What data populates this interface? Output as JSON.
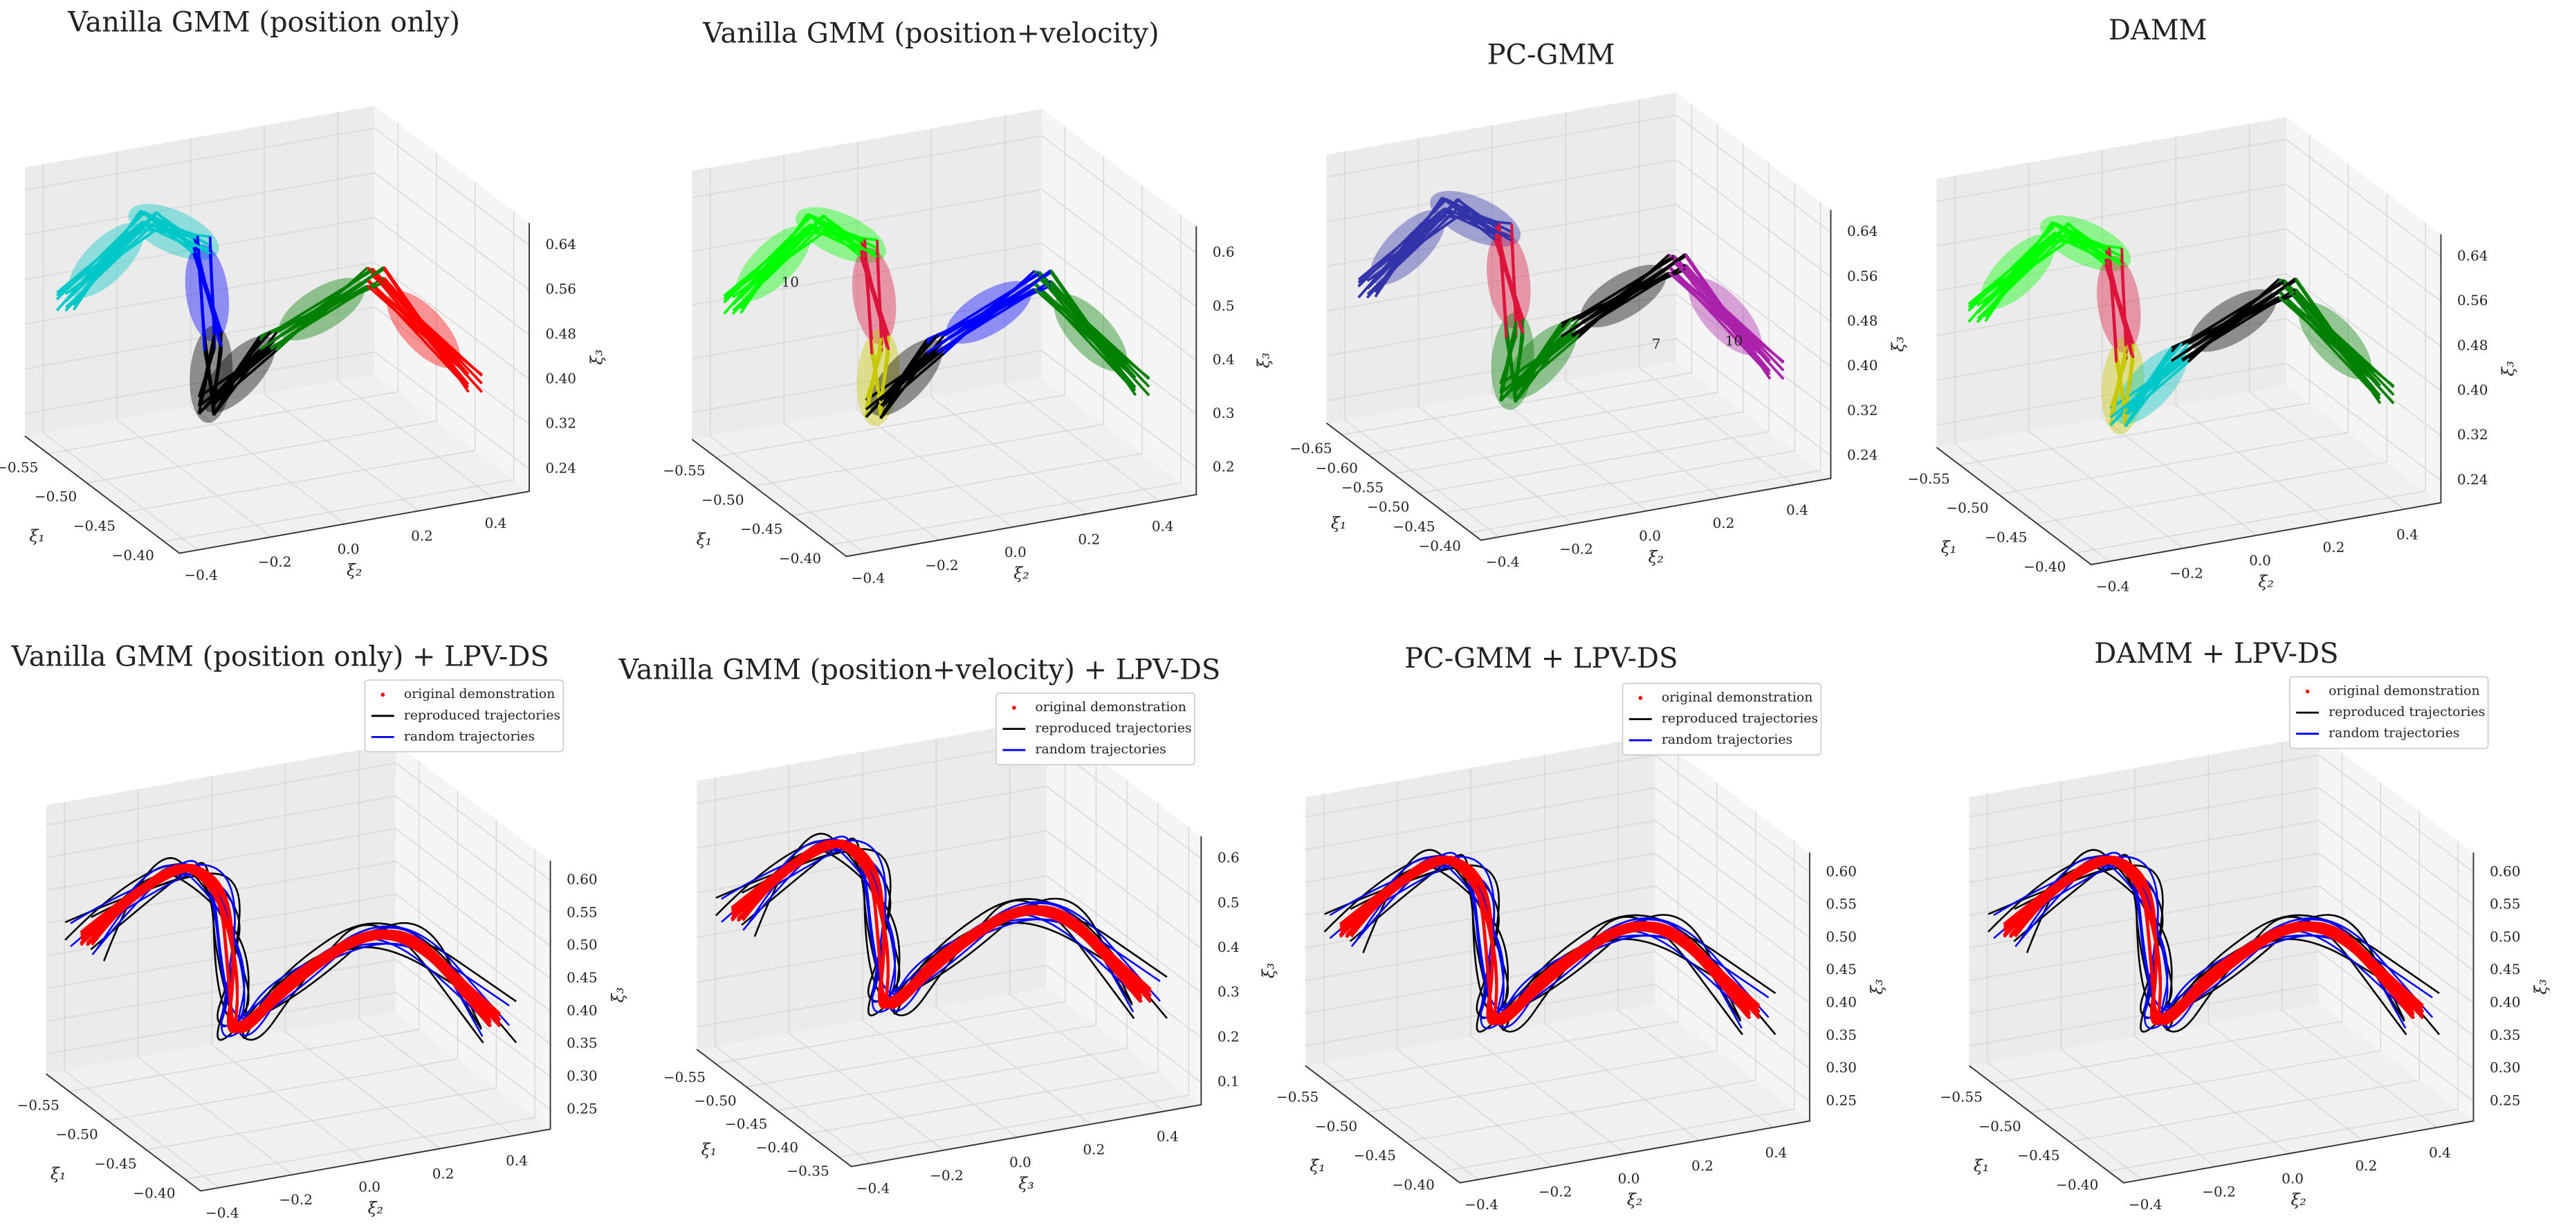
{
  "chart_data": [
    {
      "type": "3d-gmm",
      "title": "Vanilla GMM (position only)",
      "xlabel": "ξ₁",
      "ylabel": "ξ₂",
      "zlabel": "ξ₃",
      "colors": [
        "#00c8c8",
        "#0000ff",
        "#000000",
        "#008000",
        "#ff0000"
      ],
      "xlim": [
        -0.58,
        -0.38
      ],
      "xticks": [
        {
          "value": -0.55,
          "label": "−0.55"
        },
        {
          "value": -0.5,
          "label": "−0.50"
        },
        {
          "value": -0.45,
          "label": "−0.45"
        },
        {
          "value": -0.4,
          "label": "−0.40"
        }
      ],
      "ylim": [
        -0.45,
        0.5
      ],
      "yticks": [
        {
          "value": -0.4,
          "label": "−0.4"
        },
        {
          "value": -0.2,
          "label": "−0.2"
        },
        {
          "value": 0,
          "label": "0.0"
        },
        0.2,
        0.4
      ],
      "zlim": [
        0.2,
        0.68
      ],
      "zticks": [
        0.24,
        0.32,
        {
          "value": 0.4,
          "label": "0.40"
        },
        0.48,
        0.56,
        0.64
      ]
    },
    {
      "type": "3d-gmm",
      "title": "Vanilla GMM (position+velocity)",
      "xlabel": "ξ₁",
      "ylabel": "ξ₂",
      "zlabel": "ξ₃",
      "colors": [
        "#00ff00",
        "#dc143c",
        "#c8c800",
        "#000000",
        "#0000ff",
        "#008000"
      ],
      "annotations": [
        "10"
      ],
      "xlim": [
        -0.58,
        -0.38
      ],
      "xticks": [
        {
          "value": -0.55,
          "label": "−0.55"
        },
        {
          "value": -0.5,
          "label": "−0.50"
        },
        {
          "value": -0.45,
          "label": "−0.45"
        },
        {
          "value": -0.4,
          "label": "−0.40"
        }
      ],
      "ylim": [
        -0.45,
        0.5
      ],
      "yticks": [
        {
          "value": -0.4,
          "label": "−0.4"
        },
        {
          "value": -0.2,
          "label": "−0.2"
        },
        {
          "value": 0,
          "label": "0.0"
        },
        0.2,
        0.4
      ],
      "zlim": [
        0.15,
        0.65
      ],
      "zticks": [
        0.2,
        0.3,
        0.4,
        0.5,
        0.6
      ]
    },
    {
      "type": "3d-gmm",
      "title": "PC-GMM",
      "xlabel": "ξ₁",
      "ylabel": "ξ₂",
      "zlabel": "ξ₃",
      "colors": [
        "#3333aa",
        "#dc143c",
        "#008000",
        "#000000",
        "#aa22aa"
      ],
      "annotations": [
        "7",
        "10"
      ],
      "xlim": [
        -0.68,
        -0.38
      ],
      "xticks": [
        {
          "value": -0.65,
          "label": "−0.65"
        },
        {
          "value": -0.6,
          "label": "−0.60"
        },
        {
          "value": -0.55,
          "label": "−0.55"
        },
        {
          "value": -0.5,
          "label": "−0.50"
        },
        {
          "value": -0.45,
          "label": "−0.45"
        },
        {
          "value": -0.4,
          "label": "−0.40"
        }
      ],
      "ylim": [
        -0.45,
        0.5
      ],
      "yticks": [
        {
          "value": -0.4,
          "label": "−0.4"
        },
        {
          "value": -0.2,
          "label": "−0.2"
        },
        {
          "value": 0,
          "label": "0.0"
        },
        0.2,
        0.4
      ],
      "zlim": [
        0.2,
        0.68
      ],
      "zticks": [
        0.24,
        0.32,
        {
          "value": 0.4,
          "label": "0.40"
        },
        0.48,
        0.56,
        0.64
      ]
    },
    {
      "type": "3d-gmm",
      "title": "DAMM",
      "xlabel": "ξ₁",
      "ylabel": "ξ₂",
      "zlabel": "ξ₃",
      "colors": [
        "#00ff00",
        "#dc143c",
        "#c8c800",
        "#00c8c8",
        "#000000",
        "#008000"
      ],
      "xlim": [
        -0.58,
        -0.38
      ],
      "xticks": [
        {
          "value": -0.55,
          "label": "−0.55"
        },
        {
          "value": -0.5,
          "label": "−0.50"
        },
        {
          "value": -0.45,
          "label": "−0.45"
        },
        {
          "value": -0.4,
          "label": "−0.40"
        }
      ],
      "ylim": [
        -0.45,
        0.5
      ],
      "yticks": [
        {
          "value": -0.4,
          "label": "−0.4"
        },
        {
          "value": -0.2,
          "label": "−0.2"
        },
        {
          "value": 0,
          "label": "0.0"
        },
        0.2,
        0.4
      ],
      "zlim": [
        0.2,
        0.68
      ],
      "zticks": [
        0.24,
        0.32,
        {
          "value": 0.4,
          "label": "0.40"
        },
        0.48,
        0.56,
        0.64
      ]
    },
    {
      "type": "3d-ds",
      "title": "Vanilla GMM (position only) + LPV-DS",
      "xlabel": "ξ₁",
      "ylabel": "ξ₂",
      "zlabel": "ξ₃",
      "series": [
        {
          "name": "original demonstration",
          "color": "#ff0000"
        },
        {
          "name": "reproduced trajectories",
          "color": "#000000"
        },
        {
          "name": "random trajectories",
          "color": "#0000ff"
        }
      ],
      "xlim": [
        -0.58,
        -0.38
      ],
      "xticks": [
        {
          "value": -0.55,
          "label": "−0.55"
        },
        {
          "value": -0.5,
          "label": "−0.50"
        },
        {
          "value": -0.45,
          "label": "−0.45"
        },
        {
          "value": -0.4,
          "label": "−0.40"
        }
      ],
      "ylim": [
        -0.45,
        0.5
      ],
      "yticks": [
        {
          "value": -0.4,
          "label": "−0.4"
        },
        {
          "value": -0.2,
          "label": "−0.2"
        },
        {
          "value": 0,
          "label": "0.0"
        },
        0.2,
        0.4
      ],
      "zlim": [
        0.22,
        0.63
      ],
      "zticks": [
        0.25,
        {
          "value": 0.3,
          "label": "0.30"
        },
        0.35,
        {
          "value": 0.4,
          "label": "0.40"
        },
        0.45,
        {
          "value": 0.5,
          "label": "0.50"
        },
        0.55,
        {
          "value": 0.6,
          "label": "0.60"
        }
      ]
    },
    {
      "type": "3d-ds",
      "title": "Vanilla GMM (position+velocity) + LPV-DS",
      "xlabel": "ξ₁",
      "ylabel": "ξ₃",
      "zlabel": "ξ₃",
      "series": [
        {
          "name": "original demonstration",
          "color": "#ff0000"
        },
        {
          "name": "reproduced trajectories",
          "color": "#000000"
        },
        {
          "name": "random trajectories",
          "color": "#0000ff"
        }
      ],
      "xlim": [
        -0.58,
        -0.33
      ],
      "xticks": [
        {
          "value": -0.55,
          "label": "−0.55"
        },
        {
          "value": -0.5,
          "label": "−0.50"
        },
        {
          "value": -0.45,
          "label": "−0.45"
        },
        {
          "value": -0.4,
          "label": "−0.40"
        },
        {
          "value": -0.35,
          "label": "−0.35"
        }
      ],
      "ylim": [
        -0.45,
        0.5
      ],
      "yticks": [
        {
          "value": -0.4,
          "label": "−0.4"
        },
        {
          "value": -0.2,
          "label": "−0.2"
        },
        {
          "value": 0,
          "label": "0.0"
        },
        0.2,
        0.4
      ],
      "zlim": [
        0.05,
        0.65
      ],
      "zticks": [
        0.1,
        0.2,
        0.3,
        0.4,
        0.5,
        0.6
      ]
    },
    {
      "type": "3d-ds",
      "title": "PC-GMM + LPV-DS",
      "xlabel": "ξ₁",
      "ylabel": "ξ₂",
      "zlabel": "ξ₃",
      "series": [
        {
          "name": "original demonstration",
          "color": "#ff0000"
        },
        {
          "name": "reproduced trajectories",
          "color": "#000000"
        },
        {
          "name": "random trajectories",
          "color": "#0000ff"
        }
      ],
      "xlim": [
        -0.58,
        -0.38
      ],
      "xticks": [
        {
          "value": -0.55,
          "label": "−0.55"
        },
        {
          "value": -0.5,
          "label": "−0.50"
        },
        {
          "value": -0.45,
          "label": "−0.45"
        },
        {
          "value": -0.4,
          "label": "−0.40"
        }
      ],
      "ylim": [
        -0.45,
        0.5
      ],
      "yticks": [
        {
          "value": -0.4,
          "label": "−0.4"
        },
        {
          "value": -0.2,
          "label": "−0.2"
        },
        {
          "value": 0,
          "label": "0.0"
        },
        0.2,
        0.4
      ],
      "zlim": [
        0.22,
        0.63
      ],
      "zticks": [
        0.25,
        {
          "value": 0.3,
          "label": "0.30"
        },
        0.35,
        {
          "value": 0.4,
          "label": "0.40"
        },
        0.45,
        {
          "value": 0.5,
          "label": "0.50"
        },
        0.55,
        {
          "value": 0.6,
          "label": "0.60"
        }
      ]
    },
    {
      "type": "3d-ds",
      "title": "DAMM + LPV-DS",
      "xlabel": "ξ₁",
      "ylabel": "ξ₂",
      "zlabel": "ξ₃",
      "series": [
        {
          "name": "original demonstration",
          "color": "#ff0000"
        },
        {
          "name": "reproduced trajectories",
          "color": "#000000"
        },
        {
          "name": "random trajectories",
          "color": "#0000ff"
        }
      ],
      "xlim": [
        -0.58,
        -0.38
      ],
      "xticks": [
        {
          "value": -0.55,
          "label": "−0.55"
        },
        {
          "value": -0.5,
          "label": "−0.50"
        },
        {
          "value": -0.45,
          "label": "−0.45"
        },
        {
          "value": -0.4,
          "label": "−0.40"
        }
      ],
      "ylim": [
        -0.45,
        0.5
      ],
      "yticks": [
        {
          "value": -0.4,
          "label": "−0.4"
        },
        {
          "value": -0.2,
          "label": "−0.2"
        },
        {
          "value": 0,
          "label": "0.0"
        },
        0.2,
        0.4
      ],
      "zlim": [
        0.22,
        0.63
      ],
      "zticks": [
        0.25,
        {
          "value": 0.3,
          "label": "0.30"
        },
        0.35,
        {
          "value": 0.4,
          "label": "0.40"
        },
        0.45,
        {
          "value": 0.5,
          "label": "0.50"
        },
        0.55,
        {
          "value": 0.6,
          "label": "0.60"
        }
      ]
    }
  ]
}
